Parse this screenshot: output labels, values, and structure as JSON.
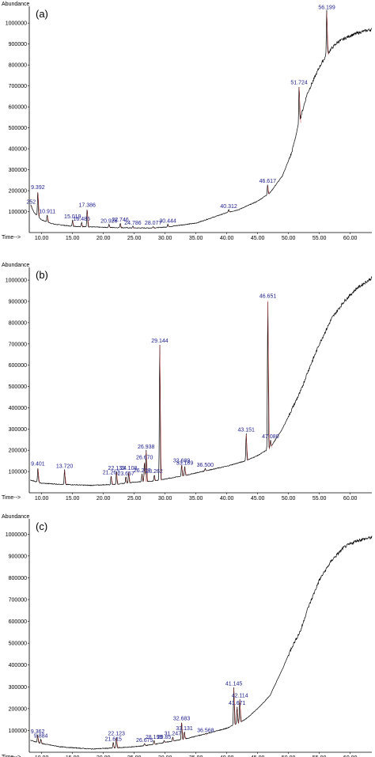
{
  "chart_data": [
    {
      "type": "line",
      "panel_label": "(a)",
      "ylabel": "Abundance",
      "xlabel": "Time-->",
      "xlim": [
        8.0,
        63.5
      ],
      "ylim": [
        0,
        1080000
      ],
      "x_ticks": [
        "10.00",
        "15.00",
        "20.00",
        "25.00",
        "30.00",
        "35.00",
        "40.00",
        "45.00",
        "50.00",
        "55.00",
        "60.00"
      ],
      "y_ticks": [
        "100000",
        "200000",
        "300000",
        "400000",
        "500000",
        "600000",
        "700000",
        "800000",
        "900000",
        "1000000"
      ],
      "baseline": [
        [
          8.2,
          130000
        ],
        [
          8.8,
          95000
        ],
        [
          10,
          60000
        ],
        [
          12,
          40000
        ],
        [
          15,
          30000
        ],
        [
          20,
          25000
        ],
        [
          25,
          22000
        ],
        [
          28,
          22000
        ],
        [
          30,
          26000
        ],
        [
          35,
          45000
        ],
        [
          40,
          95000
        ],
        [
          42,
          110000
        ],
        [
          45,
          150000
        ],
        [
          47,
          190000
        ],
        [
          49,
          270000
        ],
        [
          50.5,
          380000
        ],
        [
          51.5,
          500000
        ],
        [
          53,
          660000
        ],
        [
          55,
          790000
        ],
        [
          56,
          840000
        ],
        [
          57,
          880000
        ],
        [
          58,
          910000
        ],
        [
          60,
          940000
        ],
        [
          62,
          960000
        ],
        [
          63.5,
          970000
        ]
      ],
      "peaks": [
        {
          "label": "9.392",
          "x": 9.392,
          "y": 200000
        },
        {
          "label": "252",
          "x": 8.3,
          "y": 130000
        },
        {
          "label": "10.911",
          "x": 10.911,
          "y": 85000
        },
        {
          "label": "15.019",
          "x": 15.019,
          "y": 60000
        },
        {
          "label": "16.485",
          "x": 16.485,
          "y": 50000
        },
        {
          "label": "17.386",
          "x": 17.386,
          "y": 115000
        },
        {
          "label": "20.926",
          "x": 20.926,
          "y": 40000
        },
        {
          "label": "22.746",
          "x": 22.746,
          "y": 45000
        },
        {
          "label": "24.786",
          "x": 24.786,
          "y": 30000
        },
        {
          "label": "28.077",
          "x": 28.077,
          "y": 30000
        },
        {
          "label": "30.444",
          "x": 30.444,
          "y": 40000
        },
        {
          "label": "40.312",
          "x": 40.312,
          "y": 110000
        },
        {
          "label": "46.617",
          "x": 46.617,
          "y": 230000
        },
        {
          "label": "51.724",
          "x": 51.724,
          "y": 700000
        },
        {
          "label": "56.199",
          "x": 56.199,
          "y": 1060000
        }
      ]
    },
    {
      "type": "line",
      "panel_label": "(b)",
      "ylabel": "Abundance",
      "xlabel": "Time-->",
      "xlim": [
        8.0,
        63.5
      ],
      "ylim": [
        0,
        1060000
      ],
      "x_ticks": [
        "10.00",
        "15.00",
        "20.00",
        "25.00",
        "30.00",
        "35.00",
        "40.00",
        "45.00",
        "50.00",
        "55.00",
        "60.00"
      ],
      "y_ticks": [
        "100000",
        "200000",
        "300000",
        "400000",
        "500000",
        "600000",
        "700000",
        "800000",
        "900000",
        "1000000"
      ],
      "baseline": [
        [
          8.2,
          60000
        ],
        [
          10,
          45000
        ],
        [
          13,
          40000
        ],
        [
          18,
          35000
        ],
        [
          22,
          40000
        ],
        [
          25,
          50000
        ],
        [
          28,
          55000
        ],
        [
          30,
          65000
        ],
        [
          33,
          80000
        ],
        [
          36,
          100000
        ],
        [
          40,
          125000
        ],
        [
          43,
          150000
        ],
        [
          45,
          175000
        ],
        [
          47,
          210000
        ],
        [
          49,
          300000
        ],
        [
          51,
          420000
        ],
        [
          52,
          480000
        ],
        [
          53,
          560000
        ],
        [
          55,
          700000
        ],
        [
          57,
          820000
        ],
        [
          59,
          900000
        ],
        [
          61,
          960000
        ],
        [
          63.5,
          1010000
        ]
      ],
      "peaks": [
        {
          "label": "9.401",
          "x": 9.401,
          "y": 120000
        },
        {
          "label": "13.720",
          "x": 13.72,
          "y": 110000
        },
        {
          "label": "21.267",
          "x": 21.267,
          "y": 80000
        },
        {
          "label": "22.133",
          "x": 22.133,
          "y": 100000
        },
        {
          "label": "23.657",
          "x": 23.657,
          "y": 75000
        },
        {
          "label": "24.108",
          "x": 24.108,
          "y": 100000
        },
        {
          "label": "26.267",
          "x": 26.267,
          "y": 90000
        },
        {
          "label": "26.670",
          "x": 26.67,
          "y": 150000
        },
        {
          "label": "26.938",
          "x": 26.938,
          "y": 200000
        },
        {
          "label": "28.262",
          "x": 28.262,
          "y": 85000
        },
        {
          "label": "29.144",
          "x": 29.144,
          "y": 700000
        },
        {
          "label": "32.689",
          "x": 32.689,
          "y": 135000
        },
        {
          "label": "33.189",
          "x": 33.189,
          "y": 125000
        },
        {
          "label": "36.500",
          "x": 36.5,
          "y": 115000
        },
        {
          "label": "43.151",
          "x": 43.151,
          "y": 280000
        },
        {
          "label": "46.651",
          "x": 46.651,
          "y": 910000
        },
        {
          "label": "47.080",
          "x": 47.08,
          "y": 250000
        }
      ]
    },
    {
      "type": "line",
      "panel_label": "(c)",
      "ylabel": "Abundance",
      "xlabel": "Time-->",
      "xlim": [
        8.0,
        63.5
      ],
      "ylim": [
        0,
        1070000
      ],
      "x_ticks": [
        "10.00",
        "15.00",
        "20.00",
        "25.00",
        "30.00",
        "35.00",
        "40.00",
        "45.00",
        "50.00",
        "55.00",
        "60.00"
      ],
      "y_ticks": [
        "100000",
        "200000",
        "300000",
        "400000",
        "500000",
        "600000",
        "700000",
        "800000",
        "900000",
        "1000000"
      ],
      "baseline": [
        [
          8.2,
          55000
        ],
        [
          10,
          40000
        ],
        [
          13,
          25000
        ],
        [
          18,
          15000
        ],
        [
          22,
          20000
        ],
        [
          25,
          25000
        ],
        [
          28,
          35000
        ],
        [
          30,
          45000
        ],
        [
          33,
          60000
        ],
        [
          36,
          80000
        ],
        [
          40,
          110000
        ],
        [
          43,
          150000
        ],
        [
          45,
          200000
        ],
        [
          47,
          260000
        ],
        [
          49,
          380000
        ],
        [
          50.5,
          480000
        ],
        [
          52,
          560000
        ],
        [
          53,
          650000
        ],
        [
          55,
          790000
        ],
        [
          57,
          880000
        ],
        [
          59,
          940000
        ],
        [
          61,
          970000
        ],
        [
          63.5,
          985000
        ]
      ],
      "peaks": [
        {
          "label": "9.362",
          "x": 9.362,
          "y": 80000
        },
        {
          "label": "9.884",
          "x": 9.884,
          "y": 60000
        },
        {
          "label": "21.615",
          "x": 21.615,
          "y": 45000
        },
        {
          "label": "22.123",
          "x": 22.123,
          "y": 70000
        },
        {
          "label": "26.675",
          "x": 26.675,
          "y": 40000
        },
        {
          "label": "28.198",
          "x": 28.198,
          "y": 55000
        },
        {
          "label": "29.85",
          "x": 29.85,
          "y": 55000
        },
        {
          "label": "31.247",
          "x": 31.247,
          "y": 70000
        },
        {
          "label": "32.683",
          "x": 32.683,
          "y": 140000
        },
        {
          "label": "33.131",
          "x": 33.131,
          "y": 95000
        },
        {
          "label": "36.568",
          "x": 36.568,
          "y": 85000
        },
        {
          "label": "41.145",
          "x": 41.145,
          "y": 300000
        },
        {
          "label": "41.671",
          "x": 41.671,
          "y": 210000
        },
        {
          "label": "42.114",
          "x": 42.114,
          "y": 245000
        }
      ]
    }
  ],
  "colors": {
    "trace": "#000000",
    "label": "#1a1a8c",
    "integration": "#d04040"
  }
}
